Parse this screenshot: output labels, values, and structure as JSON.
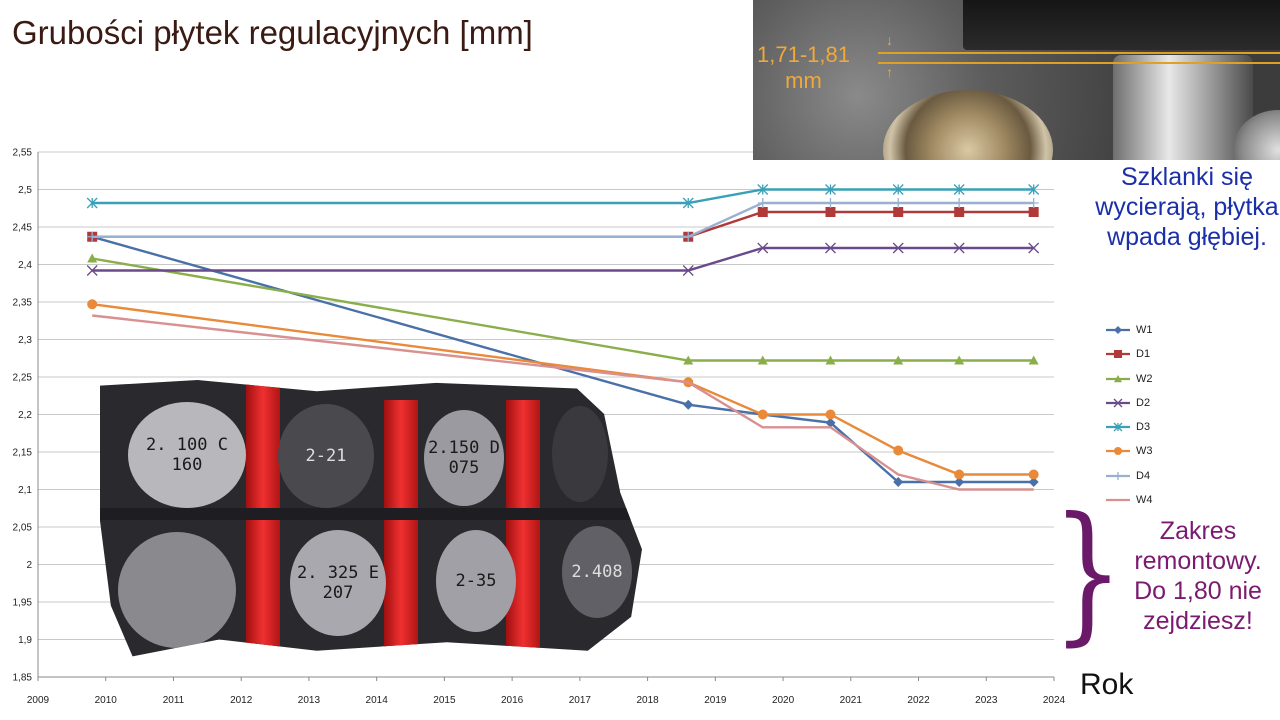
{
  "title": "Grubości płytek regulacyjnych [mm]",
  "photo_top": {
    "measure_label": "1,71-1,81",
    "measure_unit": "mm"
  },
  "note_blue": "Szklanki się wycierają, płytka wpada głębiej.",
  "note_purple": "Zakres remontowy. Do 1,80 nie zejdziesz!",
  "x_caption": "Rok",
  "tray_labels": [
    "2. 100 C 160",
    "2-21",
    "2.150 D 075",
    "2. 325 E 207",
    "2-35",
    "2.408"
  ],
  "chart_data": {
    "type": "line",
    "xlim": [
      2009,
      2024
    ],
    "ylim": [
      1.85,
      2.55
    ],
    "x_ticks": [
      "2009",
      "2010",
      "2011",
      "2012",
      "2013",
      "2014",
      "2015",
      "2016",
      "2017",
      "2018",
      "2019",
      "2020",
      "2021",
      "2022",
      "2023",
      "2024"
    ],
    "y_ticks": [
      "1,85",
      "1,9",
      "1,95",
      "2",
      "2,05",
      "2,1",
      "2,15",
      "2,2",
      "2,25",
      "2,3",
      "2,35",
      "2,4",
      "2,45",
      "2,5",
      "2,55"
    ],
    "grid": "horizontal",
    "legend_position": "right",
    "series": [
      {
        "name": "W1",
        "color": "#4a70a8",
        "marker": "diamond",
        "points": [
          [
            2009.8,
            2.437
          ],
          [
            2018.6,
            2.213
          ],
          [
            2019.7,
            2.2
          ],
          [
            2020.7,
            2.189
          ],
          [
            2021.7,
            2.11
          ],
          [
            2022.6,
            2.11
          ],
          [
            2023.7,
            2.11
          ]
        ]
      },
      {
        "name": "D1",
        "color": "#b03a3a",
        "marker": "square",
        "points": [
          [
            2009.8,
            2.437
          ],
          [
            2018.6,
            2.437
          ],
          [
            2019.7,
            2.47
          ],
          [
            2020.7,
            2.47
          ],
          [
            2021.7,
            2.47
          ],
          [
            2022.6,
            2.47
          ],
          [
            2023.7,
            2.47
          ]
        ]
      },
      {
        "name": "W2",
        "color": "#8aae4a",
        "marker": "triangle",
        "points": [
          [
            2009.8,
            2.408
          ],
          [
            2018.6,
            2.272
          ],
          [
            2019.7,
            2.272
          ],
          [
            2020.7,
            2.272
          ],
          [
            2021.7,
            2.272
          ],
          [
            2022.6,
            2.272
          ],
          [
            2023.7,
            2.272
          ]
        ]
      },
      {
        "name": "D2",
        "color": "#6a4a8a",
        "marker": "x",
        "points": [
          [
            2009.8,
            2.392
          ],
          [
            2018.6,
            2.392
          ],
          [
            2019.7,
            2.422
          ],
          [
            2020.7,
            2.422
          ],
          [
            2021.7,
            2.422
          ],
          [
            2022.6,
            2.422
          ],
          [
            2023.7,
            2.422
          ]
        ]
      },
      {
        "name": "D3",
        "color": "#3aa0b8",
        "marker": "star",
        "points": [
          [
            2009.8,
            2.482
          ],
          [
            2018.6,
            2.482
          ],
          [
            2019.7,
            2.5
          ],
          [
            2020.7,
            2.5
          ],
          [
            2021.7,
            2.5
          ],
          [
            2022.6,
            2.5
          ],
          [
            2023.7,
            2.5
          ]
        ]
      },
      {
        "name": "W3",
        "color": "#e88a3a",
        "marker": "circle",
        "points": [
          [
            2009.8,
            2.347
          ],
          [
            2018.6,
            2.243
          ],
          [
            2019.7,
            2.2
          ],
          [
            2020.7,
            2.2
          ],
          [
            2021.7,
            2.152
          ],
          [
            2022.6,
            2.12
          ],
          [
            2023.7,
            2.12
          ]
        ]
      },
      {
        "name": "D4",
        "color": "#9ab0d0",
        "marker": "plus",
        "points": [
          [
            2009.8,
            2.437
          ],
          [
            2018.6,
            2.437
          ],
          [
            2019.7,
            2.482
          ],
          [
            2020.7,
            2.482
          ],
          [
            2021.7,
            2.482
          ],
          [
            2022.6,
            2.482
          ],
          [
            2023.7,
            2.482
          ]
        ]
      },
      {
        "name": "W4",
        "color": "#d89090",
        "marker": "none",
        "points": [
          [
            2009.8,
            2.332
          ],
          [
            2018.6,
            2.243
          ],
          [
            2019.7,
            2.183
          ],
          [
            2020.7,
            2.183
          ],
          [
            2021.7,
            2.12
          ],
          [
            2022.6,
            2.1
          ],
          [
            2023.7,
            2.1
          ]
        ]
      }
    ]
  }
}
